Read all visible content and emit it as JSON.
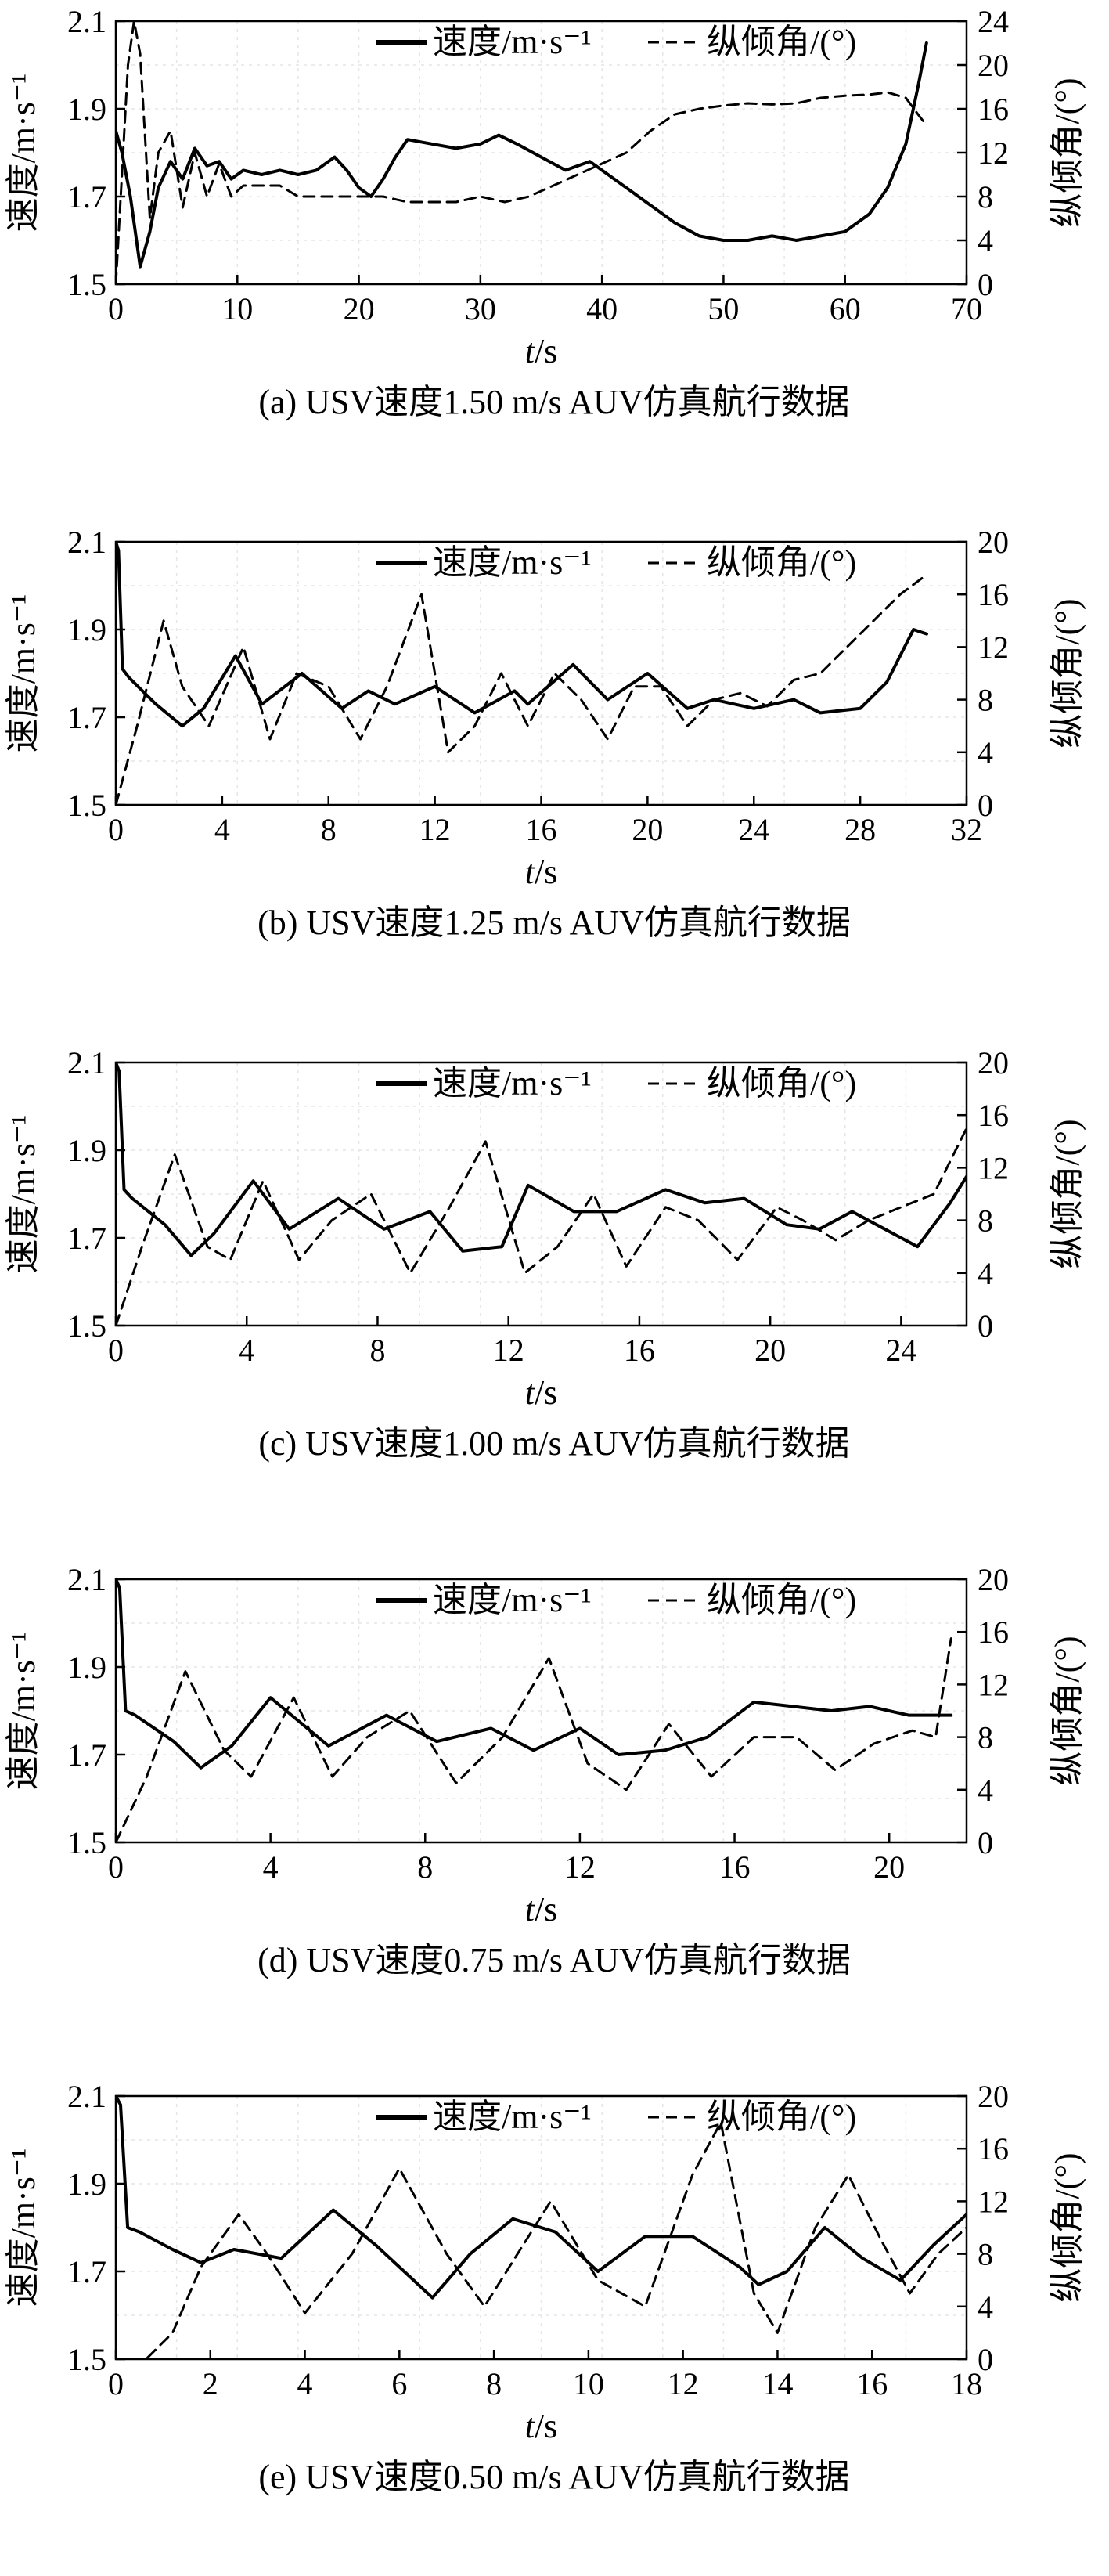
{
  "legend": {
    "speed_label": "速度/m·s⁻¹",
    "pitch_label": "纵倾角/(°)"
  },
  "axes": {
    "y_left_label": "速度/m·s⁻¹",
    "y_right_label": "纵倾角/(°)",
    "x_label_italic": "t",
    "x_label_rest": "/s"
  },
  "colors": {
    "line": "#000000",
    "grid": "#e6e6e6"
  },
  "chart_data": [
    {
      "type": "line",
      "caption": "(a) USV速度1.50 m/s AUV仿真航行数据",
      "xlim": [
        0,
        70
      ],
      "xticks": [
        0,
        10,
        20,
        30,
        40,
        50,
        60,
        70
      ],
      "ylim_left": [
        1.5,
        2.1
      ],
      "yticks_left": [
        1.5,
        1.7,
        1.9,
        2.1
      ],
      "ylim_right": [
        0,
        24
      ],
      "yticks_right": [
        0,
        4,
        8,
        12,
        16,
        20,
        24
      ],
      "series": [
        {
          "name": "速度/m·s⁻¹",
          "axis": "left",
          "style": "solid",
          "x": [
            0,
            0.5,
            1.2,
            2,
            2.8,
            3.5,
            4.5,
            5.5,
            6.5,
            7.5,
            8.5,
            9.5,
            10.5,
            12,
            13.5,
            15,
            16.5,
            18,
            19,
            20,
            21,
            22,
            23,
            24,
            26,
            28,
            30,
            31.5,
            33,
            35,
            37,
            39,
            40,
            42,
            44,
            46,
            48,
            50,
            52,
            54,
            56,
            58,
            60,
            62,
            63.5,
            65,
            66,
            66.7
          ],
          "y": [
            1.85,
            1.8,
            1.7,
            1.54,
            1.62,
            1.72,
            1.78,
            1.74,
            1.81,
            1.77,
            1.78,
            1.74,
            1.76,
            1.75,
            1.76,
            1.75,
            1.76,
            1.79,
            1.76,
            1.72,
            1.7,
            1.74,
            1.79,
            1.83,
            1.82,
            1.81,
            1.82,
            1.84,
            1.82,
            1.79,
            1.76,
            1.78,
            1.76,
            1.72,
            1.68,
            1.64,
            1.61,
            1.6,
            1.6,
            1.61,
            1.6,
            1.61,
            1.62,
            1.66,
            1.72,
            1.82,
            1.95,
            2.05
          ]
        },
        {
          "name": "纵倾角/(°)",
          "axis": "right",
          "style": "dashed",
          "x": [
            0,
            0.5,
            1,
            1.5,
            2,
            2.8,
            3.5,
            4.5,
            5.5,
            6.5,
            7.5,
            8.5,
            9.5,
            10.5,
            12,
            13.5,
            15,
            16.5,
            18,
            20,
            22,
            24,
            26,
            28,
            30,
            32,
            34,
            36,
            38,
            40,
            42,
            44,
            46,
            48,
            50,
            52,
            54,
            56,
            58,
            60,
            62,
            63.5,
            65,
            66,
            66.7
          ],
          "y": [
            0,
            10,
            20,
            24,
            21,
            6,
            12,
            14,
            7,
            12,
            8,
            11,
            8,
            9,
            9,
            9,
            8,
            8,
            8,
            8,
            8,
            7.5,
            7.5,
            7.5,
            8,
            7.5,
            8,
            9,
            10,
            11,
            12,
            14,
            15.5,
            16,
            16.3,
            16.5,
            16.4,
            16.5,
            17,
            17.2,
            17.3,
            17.5,
            17,
            15.5,
            14.5
          ]
        }
      ]
    },
    {
      "type": "line",
      "caption": "(b) USV速度1.25 m/s AUV仿真航行数据",
      "xlim": [
        0,
        32
      ],
      "xticks": [
        0,
        4,
        8,
        12,
        16,
        20,
        24,
        28,
        32
      ],
      "ylim_left": [
        1.5,
        2.1
      ],
      "yticks_left": [
        1.5,
        1.7,
        1.9,
        2.1
      ],
      "ylim_right": [
        0,
        20
      ],
      "yticks_right": [
        0,
        4,
        8,
        12,
        16,
        20
      ],
      "series": [
        {
          "name": "速度/m·s⁻¹",
          "axis": "left",
          "style": "solid",
          "x": [
            0,
            0.1,
            0.25,
            0.5,
            1.5,
            2.5,
            3.3,
            4.5,
            5.5,
            7,
            8.5,
            9.5,
            10.5,
            12,
            13.5,
            15,
            15.5,
            17.2,
            18.5,
            20,
            21.5,
            22.5,
            24,
            25.5,
            26.5,
            28,
            29,
            30,
            30.5
          ],
          "y": [
            2.1,
            2.08,
            1.81,
            1.79,
            1.73,
            1.68,
            1.72,
            1.84,
            1.73,
            1.8,
            1.72,
            1.76,
            1.73,
            1.77,
            1.71,
            1.76,
            1.73,
            1.82,
            1.74,
            1.8,
            1.72,
            1.74,
            1.72,
            1.74,
            1.71,
            1.72,
            1.78,
            1.9,
            1.89
          ]
        },
        {
          "name": "纵倾角/(°)",
          "axis": "right",
          "style": "dashed",
          "x": [
            0,
            0.8,
            1.8,
            2.5,
            3.5,
            4.8,
            5.8,
            6.8,
            8,
            9.2,
            10.2,
            11.5,
            12.5,
            13.5,
            14.5,
            15.5,
            16.5,
            17.5,
            18.5,
            19.5,
            20.5,
            21.5,
            22.5,
            23.5,
            24.5,
            25.5,
            26.5,
            27.5,
            28.5,
            29.5,
            30.5
          ],
          "y": [
            0,
            6,
            14,
            9,
            6,
            12,
            5,
            10,
            9,
            5,
            9,
            16,
            4,
            6,
            10,
            6,
            10,
            8,
            5,
            9,
            9,
            6,
            8,
            8.5,
            7.5,
            9.5,
            10,
            12,
            14,
            16,
            17.5
          ]
        }
      ]
    },
    {
      "type": "line",
      "caption": "(c) USV速度1.00 m/s AUV仿真航行数据",
      "xlim": [
        0,
        26
      ],
      "xticks": [
        0,
        4,
        8,
        12,
        16,
        20,
        24
      ],
      "ylim_left": [
        1.5,
        2.1
      ],
      "yticks_left": [
        1.5,
        1.7,
        1.9,
        2.1
      ],
      "ylim_right": [
        0,
        20
      ],
      "yticks_right": [
        0,
        4,
        8,
        12,
        16,
        20
      ],
      "series": [
        {
          "name": "速度/m·s⁻¹",
          "axis": "left",
          "style": "solid",
          "x": [
            0,
            0.1,
            0.25,
            0.5,
            1.5,
            2.3,
            3,
            4.2,
            5.3,
            6.8,
            8.2,
            9.6,
            10.6,
            11.8,
            12.6,
            14,
            15.3,
            16.8,
            18,
            19.2,
            20.5,
            21.5,
            22.5,
            23.5,
            24.5,
            25.5,
            26
          ],
          "y": [
            2.1,
            2.08,
            1.81,
            1.79,
            1.73,
            1.66,
            1.71,
            1.83,
            1.72,
            1.79,
            1.72,
            1.76,
            1.67,
            1.68,
            1.82,
            1.76,
            1.76,
            1.81,
            1.78,
            1.79,
            1.73,
            1.72,
            1.76,
            1.72,
            1.68,
            1.78,
            1.84
          ]
        },
        {
          "name": "纵倾角/(°)",
          "axis": "right",
          "style": "dashed",
          "x": [
            0,
            0.8,
            1.8,
            2.8,
            3.5,
            4.5,
            5.6,
            6.6,
            7.8,
            9,
            10.2,
            11.3,
            12.5,
            13.5,
            14.6,
            15.6,
            16.8,
            17.8,
            19,
            20.2,
            21,
            22,
            23,
            24,
            25,
            26
          ],
          "y": [
            0,
            6,
            13,
            6,
            5,
            11,
            5,
            8,
            10,
            4,
            9,
            14,
            4,
            6,
            10,
            4.5,
            9,
            8,
            5,
            9,
            8,
            6.5,
            8,
            9,
            10,
            15
          ]
        }
      ]
    },
    {
      "type": "line",
      "caption": "(d) USV速度0.75 m/s AUV仿真航行数据",
      "xlim": [
        0,
        22
      ],
      "xticks": [
        0,
        4,
        8,
        12,
        16,
        20
      ],
      "ylim_left": [
        1.5,
        2.1
      ],
      "yticks_left": [
        1.5,
        1.7,
        1.9,
        2.1
      ],
      "ylim_right": [
        0,
        20
      ],
      "yticks_right": [
        0,
        4,
        8,
        12,
        16,
        20
      ],
      "series": [
        {
          "name": "速度/m·s⁻¹",
          "axis": "left",
          "style": "solid",
          "x": [
            0,
            0.1,
            0.25,
            0.5,
            1.5,
            2.2,
            3,
            4,
            5.5,
            7,
            8.3,
            9.7,
            10.8,
            12,
            13,
            14.2,
            15.3,
            16.5,
            17.5,
            18.5,
            19.5,
            20.5,
            21.2,
            21.6
          ],
          "y": [
            2.1,
            2.08,
            1.8,
            1.79,
            1.73,
            1.67,
            1.72,
            1.83,
            1.72,
            1.79,
            1.73,
            1.76,
            1.71,
            1.76,
            1.7,
            1.71,
            1.74,
            1.82,
            1.81,
            1.8,
            1.81,
            1.79,
            1.79,
            1.79
          ]
        },
        {
          "name": "纵倾角/(°)",
          "axis": "right",
          "style": "dashed",
          "x": [
            0,
            0.8,
            1.8,
            2.8,
            3.5,
            4.6,
            5.6,
            6.5,
            7.6,
            8.8,
            10,
            11.2,
            12.2,
            13.2,
            14.3,
            15.4,
            16.5,
            17.6,
            18.6,
            19.6,
            20.6,
            21.2,
            21.6
          ],
          "y": [
            0,
            5,
            13,
            7,
            5,
            11,
            5,
            8,
            10,
            4.5,
            8,
            14,
            6,
            4,
            9,
            5,
            8,
            8,
            5.5,
            7.5,
            8.5,
            8,
            15.5
          ]
        }
      ]
    },
    {
      "type": "line",
      "caption": "(e) USV速度0.50 m/s AUV仿真航行数据",
      "xlim": [
        0,
        18
      ],
      "xticks": [
        0,
        2,
        4,
        6,
        8,
        10,
        12,
        14,
        16,
        18
      ],
      "ylim_left": [
        1.5,
        2.1
      ],
      "yticks_left": [
        1.5,
        1.7,
        1.9,
        2.1
      ],
      "ylim_right": [
        0,
        20
      ],
      "yticks_right": [
        0,
        4,
        8,
        12,
        16,
        20
      ],
      "series": [
        {
          "name": "速度/m·s⁻¹",
          "axis": "left",
          "style": "solid",
          "x": [
            0,
            0.1,
            0.25,
            0.5,
            1.2,
            1.8,
            2.5,
            3.5,
            4.6,
            5.5,
            6.7,
            7.5,
            8.4,
            9.3,
            10.2,
            11.2,
            12.2,
            13.2,
            13.6,
            14.2,
            15,
            15.8,
            16.6,
            17.3,
            18
          ],
          "y": [
            2.1,
            2.08,
            1.8,
            1.79,
            1.75,
            1.72,
            1.75,
            1.73,
            1.84,
            1.76,
            1.64,
            1.74,
            1.82,
            1.79,
            1.7,
            1.78,
            1.78,
            1.71,
            1.67,
            1.7,
            1.8,
            1.73,
            1.68,
            1.76,
            1.83
          ]
        },
        {
          "name": "纵倾角/(°)",
          "axis": "right",
          "style": "dashed",
          "x": [
            0,
            0.5,
            1.2,
            1.8,
            2.6,
            3.2,
            4,
            5,
            6,
            7,
            7.8,
            8.5,
            9.2,
            10.2,
            11.2,
            12.2,
            12.8,
            13.5,
            14,
            14.8,
            15.5,
            16.2,
            16.8,
            17.4,
            18
          ],
          "y": [
            0,
            -0.5,
            2,
            7,
            11,
            8,
            3.5,
            8,
            14.5,
            8,
            4,
            8,
            12,
            6,
            4,
            14,
            18,
            5,
            2,
            10,
            14,
            9,
            5,
            8,
            10
          ]
        }
      ]
    }
  ]
}
